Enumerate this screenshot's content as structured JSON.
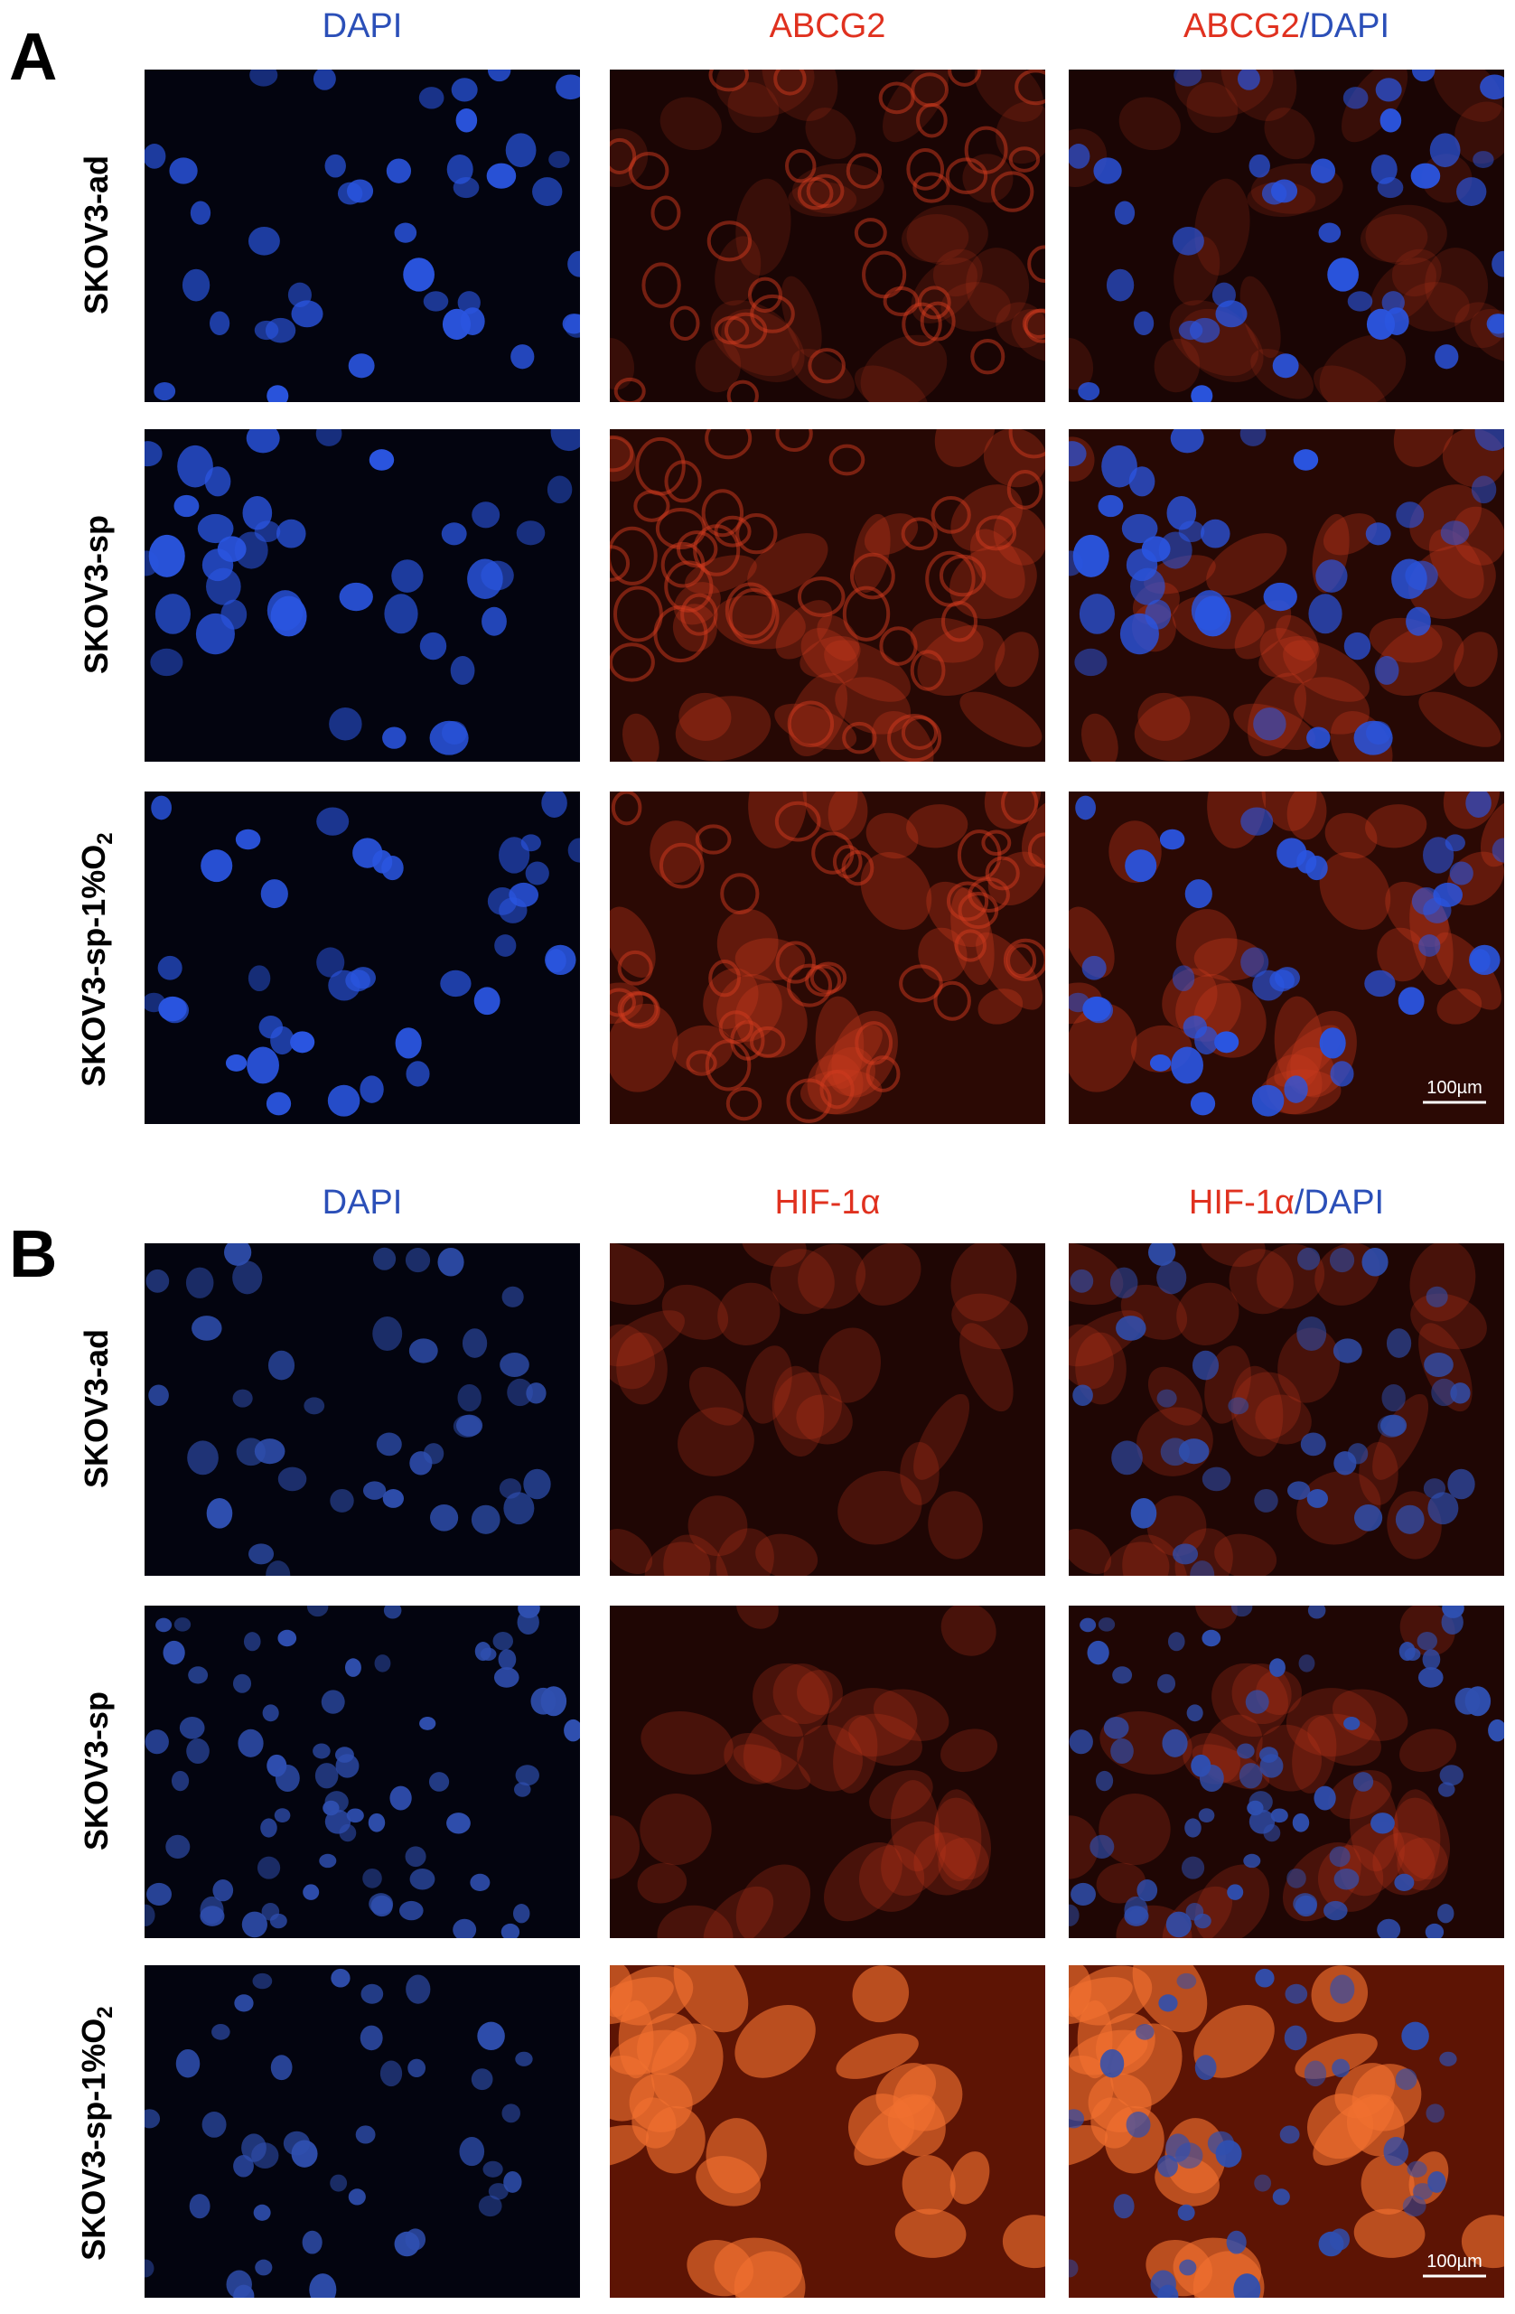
{
  "panels": [
    {
      "label": "A",
      "columns": [
        {
          "stain": "DAPI"
        },
        {
          "stain": "ABCG2"
        },
        {
          "stain": "ABCG2",
          "merge": "/DAPI"
        }
      ],
      "rows": [
        {
          "text": "SKOV3-ad"
        },
        {
          "text": "SKOV3-sp"
        },
        {
          "text": "SKOV3-sp-1%O",
          "sub": "2"
        }
      ],
      "scale_bar": "100µm"
    },
    {
      "label": "B",
      "columns": [
        {
          "stain": "DAPI"
        },
        {
          "stain": "HIF-1α"
        },
        {
          "stain": "HIF-1α",
          "merge": "/DAPI"
        }
      ],
      "rows": [
        {
          "text": "SKOV3-ad"
        },
        {
          "text": "SKOV3-sp"
        },
        {
          "text": "SKOV3-sp-1%O",
          "sub": "2"
        }
      ],
      "scale_bar": "100µm"
    }
  ]
}
